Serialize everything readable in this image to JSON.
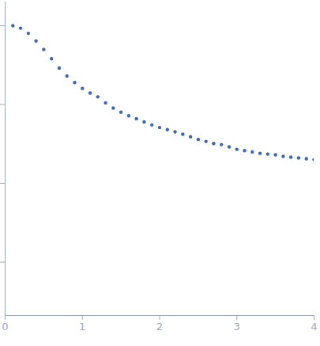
{
  "chart_data": {
    "type": "scatter",
    "color": "#3a66b8",
    "marker": "circle",
    "log": "y",
    "tick_labels": "x",
    "grid": false,
    "x": [
      0.1,
      0.2,
      0.3,
      0.4,
      0.5,
      0.6,
      0.7,
      0.8,
      0.9,
      1.0,
      1.1,
      1.2,
      1.3,
      1.4,
      1.5,
      1.6,
      1.7,
      1.8,
      1.9,
      2.0,
      2.1,
      2.2,
      2.3,
      2.4,
      2.5,
      2.6,
      2.7,
      2.8,
      2.9,
      3.0,
      3.1,
      3.2,
      3.3,
      3.4,
      3.5,
      3.6,
      3.7,
      3.8,
      3.9,
      4.0
    ],
    "values": [
      1.0,
      0.93,
      0.8,
      0.64,
      0.5,
      0.38,
      0.29,
      0.23,
      0.19,
      0.16,
      0.14,
      0.125,
      0.105,
      0.09,
      0.08,
      0.072,
      0.066,
      0.06,
      0.055,
      0.051,
      0.048,
      0.045,
      0.042,
      0.039,
      0.036,
      0.034,
      0.032,
      0.031,
      0.029,
      0.027,
      0.026,
      0.025,
      0.024,
      0.0235,
      0.023,
      0.022,
      0.0215,
      0.021,
      0.0205,
      0.02
    ],
    "xlim": [
      0,
      4
    ],
    "xticks": [
      0,
      1,
      2,
      3,
      4
    ],
    "ylim": [
      0.00021,
      2
    ],
    "yticks": [
      0.001,
      0.01,
      0.1,
      1
    ]
  }
}
